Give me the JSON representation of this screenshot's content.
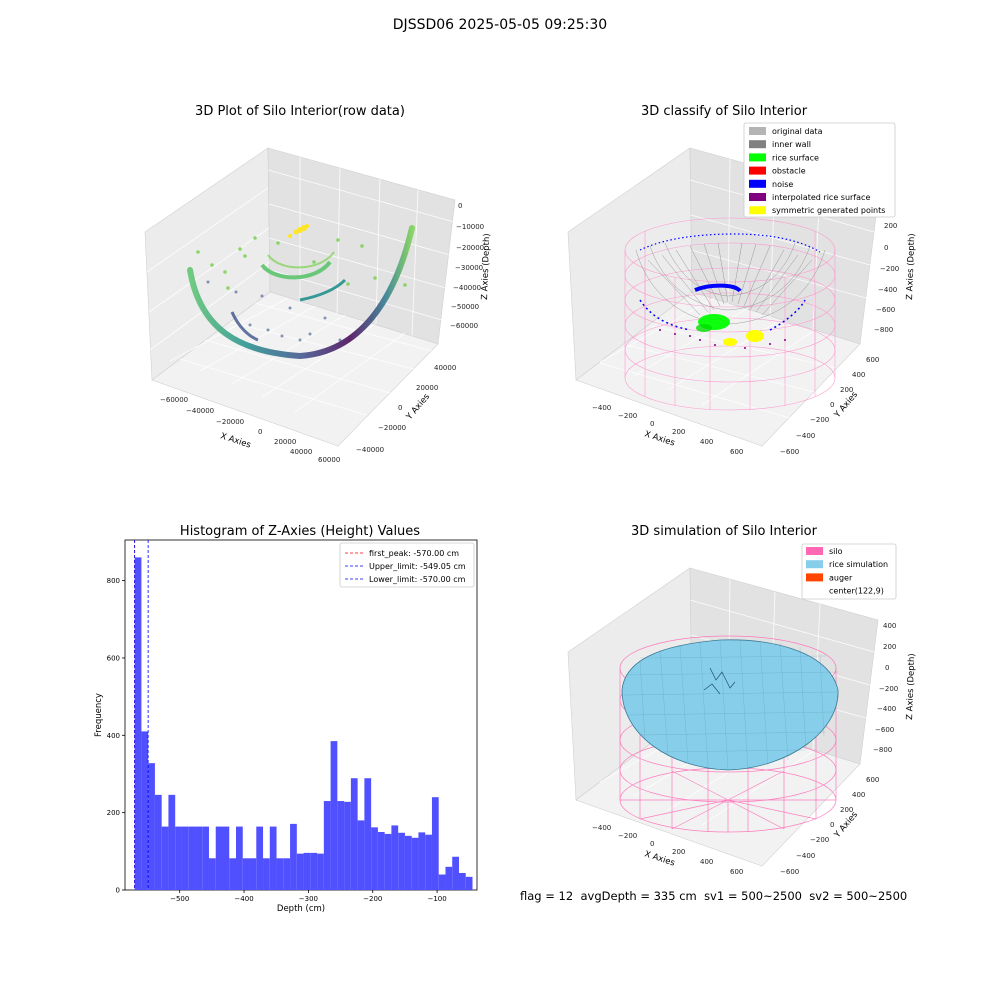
{
  "page": {
    "suptitle": "DJSSD06 2025-05-05 09:25:30"
  },
  "panel_raw": {
    "title": "3D Plot of Silo Interior(row data)",
    "xlabel": "X Axies",
    "ylabel": "Y Axies",
    "zlabel": "Z Axies (Depth)",
    "xticks": [
      "−60000",
      "−40000",
      "−20000",
      "0",
      "20000",
      "40000",
      "60000"
    ],
    "yticks": [
      "−40000",
      "−20000",
      "0",
      "20000",
      "40000"
    ],
    "zticks": [
      "0",
      "−10000",
      "−20000",
      "−30000",
      "−40000",
      "−50000",
      "−60000"
    ]
  },
  "panel_classify": {
    "title": "3D classify of Silo Interior",
    "xlabel": "X Axies",
    "ylabel": "Y Axies",
    "zlabel": "Z Axies (Depth)",
    "xticks": [
      "−400",
      "−200",
      "0",
      "200",
      "400",
      "600"
    ],
    "yticks": [
      "−600",
      "−400",
      "−200",
      "0",
      "200",
      "400",
      "600"
    ],
    "zticks": [
      "200",
      "0",
      "−200",
      "−400",
      "−600",
      "−800"
    ],
    "legend": [
      {
        "label": "original data",
        "color": "#b4b4b4"
      },
      {
        "label": "inner wall",
        "color": "#808080"
      },
      {
        "label": "rice surface",
        "color": "#00ff00"
      },
      {
        "label": "obstacle",
        "color": "#ff0000"
      },
      {
        "label": "noise",
        "color": "#0000ff"
      },
      {
        "label": "interpolated rice surface",
        "color": "#800080"
      },
      {
        "label": "symmetric generated points",
        "color": "#ffff00"
      }
    ]
  },
  "panel_hist": {
    "title": "Histogram of Z-Axies (Height) Values",
    "legend": [
      {
        "label": "first_peak: -570.00 cm",
        "color": "#ff0000"
      },
      {
        "label": "Upper_limit: -549.05 cm",
        "color": "#0000ff"
      },
      {
        "label": "Lower_limit: -570.00 cm",
        "color": "#0000ff"
      }
    ]
  },
  "panel_sim": {
    "title": "3D simulation of Silo Interior",
    "xlabel": "X Axies",
    "ylabel": "Y Axies",
    "zlabel": "Z Axies (Depth)",
    "xticks": [
      "−400",
      "−200",
      "0",
      "200",
      "400",
      "600"
    ],
    "yticks": [
      "−600",
      "−400",
      "−200",
      "0",
      "200",
      "400",
      "600"
    ],
    "zticks": [
      "400",
      "200",
      "0",
      "−200",
      "−400",
      "−600",
      "−800"
    ],
    "legend": [
      {
        "label": "silo",
        "color": "#ff69b4"
      },
      {
        "label": "rice simulation",
        "color": "#87ceeb"
      },
      {
        "label": "auger",
        "color": "#ff4500"
      },
      {
        "label": "center(122,9)",
        "color": "#ffffff"
      }
    ]
  },
  "footer": {
    "flag": "flag = 12",
    "avg_depth": "avgDepth = 335 cm",
    "sv1": "sv1 = 500~2500",
    "sv2": "sv2 = 500~2500"
  },
  "chart_data": [
    {
      "type": "scatter",
      "title": "3D Plot of Silo Interior(row data)",
      "xlabel": "X Axies",
      "ylabel": "Y Axies",
      "zlabel": "Z Axies (Depth)",
      "xlim": [
        -65000,
        65000
      ],
      "ylim": [
        -50000,
        50000
      ],
      "zlim": [
        -65000,
        5000
      ]
    },
    {
      "type": "scatter",
      "title": "3D classify of Silo Interior",
      "xlabel": "X Axies",
      "ylabel": "Y Axies",
      "zlabel": "Z Axies (Depth)",
      "xlim": [
        -500,
        700
      ],
      "ylim": [
        -650,
        650
      ],
      "zlim": [
        -900,
        300
      ],
      "legend_position": "top-right"
    },
    {
      "type": "bar",
      "title": "Histogram of Z-Axies (Height) Values",
      "xlabel": "Depth (cm)",
      "ylabel": "Frequency",
      "xlim": [
        -585,
        -38
      ],
      "ylim": [
        0,
        905
      ],
      "xticks": [
        -500,
        -400,
        -300,
        -200,
        -100
      ],
      "yticks": [
        0,
        200,
        400,
        600,
        800
      ],
      "bin_width": 10.5,
      "bins_start": [
        -570,
        -559.5,
        -549,
        -538.5,
        -528,
        -517.5,
        -507,
        -496.5,
        -486,
        -475.5,
        -465,
        -454.5,
        -444,
        -433.5,
        -423,
        -412.5,
        -402,
        -391.5,
        -381,
        -370.5,
        -360,
        -349.5,
        -339,
        -328.5,
        -318,
        -307.5,
        -297,
        -286.5,
        -276,
        -265.5,
        -255,
        -244.5,
        -234,
        -223.5,
        -213,
        -202.5,
        -192,
        -181.5,
        -171,
        -160.5,
        -150,
        -139.5,
        -129,
        -118.5,
        -108,
        -97.5,
        -87,
        -76.5,
        -66,
        -55.5
      ],
      "values": [
        860,
        410,
        328,
        246,
        164,
        246,
        164,
        164,
        164,
        164,
        164,
        82,
        164,
        164,
        82,
        164,
        82,
        82,
        164,
        82,
        164,
        82,
        82,
        171,
        94,
        96,
        96,
        94,
        230,
        385,
        230,
        228,
        289,
        180,
        289,
        162,
        150,
        145,
        167,
        148,
        140,
        135,
        149,
        143,
        240,
        40,
        60,
        86,
        44,
        34
      ],
      "vlines": [
        {
          "name": "first_peak",
          "x": -570.0,
          "color": "#ff0000"
        },
        {
          "name": "Upper_limit",
          "x": -549.05,
          "color": "#0000ff"
        },
        {
          "name": "Lower_limit",
          "x": -570.0,
          "color": "#0000ff"
        }
      ],
      "bar_color": "#5050ff",
      "legend_position": "top-right"
    },
    {
      "type": "scatter",
      "title": "3D simulation of Silo Interior",
      "xlabel": "X Axies",
      "ylabel": "Y Axies",
      "zlabel": "Z Axies (Depth)",
      "xlim": [
        -500,
        700
      ],
      "ylim": [
        -650,
        650
      ],
      "zlim": [
        -900,
        450
      ],
      "legend_position": "top-right"
    }
  ]
}
